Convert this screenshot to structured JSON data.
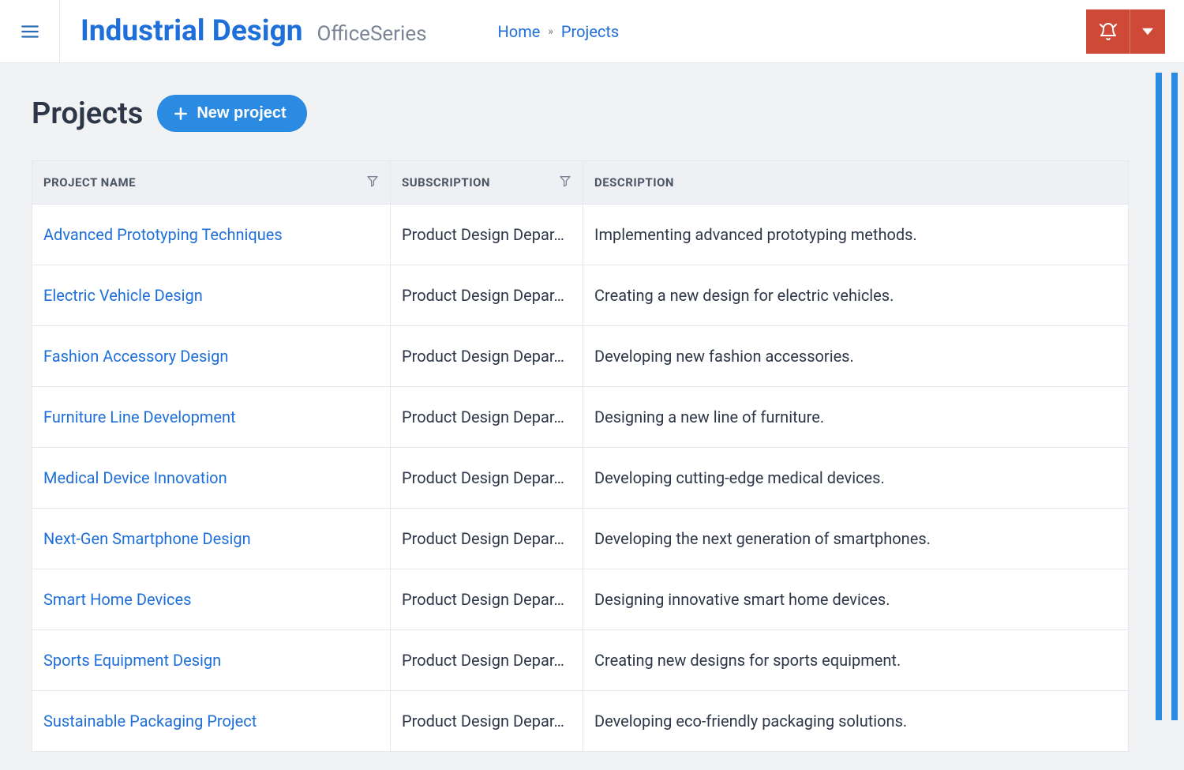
{
  "colors": {
    "accent": "#1e6fd9",
    "button": "#2b8ae2",
    "danger": "#cf4a36",
    "text": "#2d3748",
    "muted": "#7b8494",
    "border": "#e4e7ec",
    "headerBg": "#eef0f3",
    "pageBg": "#f1f2f4"
  },
  "header": {
    "brand_primary": "Industrial Design",
    "brand_secondary": "OfficeSeries",
    "breadcrumb": {
      "home": "Home",
      "current": "Projects"
    }
  },
  "page": {
    "title": "Projects",
    "new_button": "New project"
  },
  "table": {
    "columns": {
      "name": "Project Name",
      "subscription": "Subscription",
      "description": "Description"
    },
    "rows": [
      {
        "name": "Advanced Prototyping Techniques",
        "subscription": "Product Design Depar…",
        "description": "Implementing advanced prototyping methods."
      },
      {
        "name": "Electric Vehicle Design",
        "subscription": "Product Design Depar…",
        "description": "Creating a new design for electric vehicles."
      },
      {
        "name": "Fashion Accessory Design",
        "subscription": "Product Design Depar…",
        "description": "Developing new fashion accessories."
      },
      {
        "name": "Furniture Line Development",
        "subscription": "Product Design Depar…",
        "description": "Designing a new line of furniture."
      },
      {
        "name": "Medical Device Innovation",
        "subscription": "Product Design Depar…",
        "description": "Developing cutting-edge medical devices."
      },
      {
        "name": "Next-Gen Smartphone Design",
        "subscription": "Product Design Depar…",
        "description": "Developing the next generation of smartphones."
      },
      {
        "name": "Smart Home Devices",
        "subscription": "Product Design Depar…",
        "description": "Designing innovative smart home devices."
      },
      {
        "name": "Sports Equipment Design",
        "subscription": "Product Design Depar…",
        "description": "Creating new designs for sports equipment."
      },
      {
        "name": "Sustainable Packaging Project",
        "subscription": "Product Design Depar…",
        "description": "Developing eco-friendly packaging solutions."
      }
    ]
  }
}
